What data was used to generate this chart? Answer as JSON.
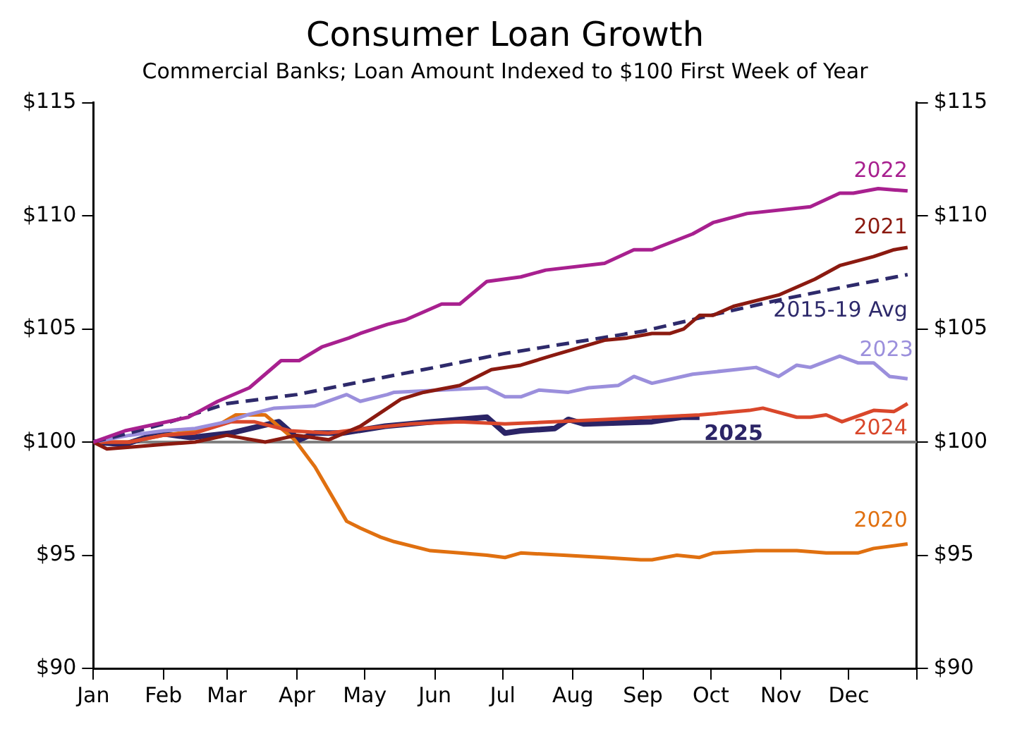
{
  "chart_data": {
    "type": "line",
    "title": "Consumer Loan Growth",
    "subtitle": "Commercial Banks; Loan Amount Indexed to $100 First Week of Year",
    "xlim": [
      "--01-01",
      "--12-31"
    ],
    "xticks": [
      {
        "value": "--01-01",
        "label": "Jan"
      },
      {
        "value": "--02-01",
        "label": "Feb"
      },
      {
        "value": "--03-01",
        "label": "Mar"
      },
      {
        "value": "--04-01",
        "label": "Apr"
      },
      {
        "value": "--05-01",
        "label": "May"
      },
      {
        "value": "--06-01",
        "label": "Jun"
      },
      {
        "value": "--07-01",
        "label": "Jul"
      },
      {
        "value": "--08-01",
        "label": "Aug"
      },
      {
        "value": "--09-01",
        "label": "Sep"
      },
      {
        "value": "--10-01",
        "label": "Oct"
      },
      {
        "value": "--11-01",
        "label": "Nov"
      },
      {
        "value": "--12-01",
        "label": "Dec"
      },
      {
        "value": "--12-31",
        "label": null
      }
    ],
    "ylim": [
      90,
      115
    ],
    "yticks": [
      {
        "value": 90,
        "label": "$90"
      },
      {
        "value": 95,
        "label": "$95"
      },
      {
        "value": 100,
        "label": "$100"
      },
      {
        "value": 105,
        "label": "$105"
      },
      {
        "value": 110,
        "label": "$110"
      },
      {
        "value": 115,
        "label": "$115"
      }
    ],
    "y2lim": [
      90,
      115
    ],
    "y2ticks": [
      {
        "value": 90,
        "label": "$90"
      },
      {
        "value": 95,
        "label": "$95"
      },
      {
        "value": 100,
        "label": "$100"
      },
      {
        "value": 105,
        "label": "$105"
      },
      {
        "value": 110,
        "label": "$110"
      },
      {
        "value": 115,
        "label": "$115"
      }
    ],
    "grid": false,
    "legend": false,
    "marker": "none",
    "ref_lines": [
      {
        "axis": "y",
        "value": 100,
        "color": "#808080"
      }
    ],
    "series": [
      {
        "name": "2022",
        "color": "#a8208f",
        "x": [
          "--01-01",
          "--01-15",
          "--02-12",
          "--02-25",
          "--03-11",
          "--03-25",
          "--04-02",
          "--04-12",
          "--04-24",
          "--04-29",
          "--05-11",
          "--05-19",
          "--06-04",
          "--06-12",
          "--06-24",
          "--07-09",
          "--07-20",
          "--08-15",
          "--08-28",
          "--09-05",
          "--09-23",
          "--10-02",
          "--10-17",
          "--11-14",
          "--11-27",
          "--12-03",
          "--12-14",
          "--12-27"
        ],
        "values": [
          100,
          100.5,
          101.1,
          101.8,
          102.4,
          103.6,
          103.6,
          104.2,
          104.6,
          104.8,
          105.2,
          105.4,
          106.1,
          106.1,
          107.1,
          107.3,
          107.6,
          107.9,
          108.5,
          108.5,
          109.2,
          109.7,
          110.1,
          110.4,
          111,
          111,
          111.2,
          111.1
        ]
      },
      {
        "name": "2021",
        "color": "#8b1a10",
        "x": [
          "--01-01",
          "--01-07",
          "--01-20",
          "--02-01",
          "--02-15",
          "--03-01",
          "--03-18",
          "--04-01",
          "--04-15",
          "--04-29",
          "--05-17",
          "--05-27",
          "--06-12",
          "--06-26",
          "--07-09",
          "--07-22",
          "--08-15",
          "--08-25",
          "--09-05",
          "--09-13",
          "--09-19",
          "--09-26",
          "--10-02",
          "--10-11",
          "--10-31",
          "--11-16",
          "--11-27",
          "--12-12",
          "--12-21",
          "--12-27"
        ],
        "values": [
          100,
          99.7,
          99.8,
          99.9,
          100,
          100.3,
          100,
          100.3,
          100.1,
          100.7,
          101.9,
          102.2,
          102.5,
          103.2,
          103.4,
          103.8,
          104.5,
          104.6,
          104.8,
          104.8,
          105,
          105.6,
          105.6,
          106,
          106.5,
          107.2,
          107.8,
          108.2,
          108.5,
          108.6
        ]
      },
      {
        "name": "2015-19 Avg",
        "color": "#2e2a6b",
        "line_style": "dashed",
        "x": [
          "--01-01",
          "--01-17",
          "--02-01",
          "--03-01",
          "--04-01",
          "--05-01",
          "--06-01",
          "--07-01",
          "--08-01",
          "--09-01",
          "--10-01",
          "--11-01",
          "--12-01",
          "--12-27"
        ],
        "values": [
          100,
          100.4,
          100.8,
          101.7,
          102.1,
          102.7,
          103.3,
          103.9,
          104.4,
          104.9,
          105.6,
          106.3,
          106.9,
          107.4
        ]
      },
      {
        "name": "2023",
        "color": "#9b8fdc",
        "x": [
          "--01-01",
          "--01-17",
          "--02-01",
          "--02-15",
          "--03-01",
          "--03-10",
          "--03-22",
          "--04-09",
          "--04-23",
          "--04-29",
          "--05-11",
          "--05-14",
          "--06-24",
          "--07-02",
          "--07-09",
          "--07-17",
          "--07-30",
          "--08-08",
          "--08-21",
          "--08-28",
          "--09-05",
          "--09-23",
          "--10-21",
          "--10-31",
          "--11-08",
          "--11-14",
          "--11-27",
          "--12-05",
          "--12-12",
          "--12-19",
          "--12-27"
        ],
        "values": [
          100,
          100.3,
          100.5,
          100.6,
          100.9,
          101.2,
          101.5,
          101.6,
          102.1,
          101.8,
          102.1,
          102.2,
          102.4,
          102,
          102,
          102.3,
          102.2,
          102.4,
          102.5,
          102.9,
          102.6,
          103,
          103.3,
          102.9,
          103.4,
          103.3,
          103.8,
          103.5,
          103.5,
          102.9,
          102.8
        ]
      },
      {
        "name": "2024",
        "color": "#d9472b",
        "x": [
          "--01-01",
          "--01-17",
          "--02-01",
          "--02-15",
          "--03-03",
          "--03-13",
          "--03-29",
          "--04-15",
          "--05-01",
          "--05-21",
          "--06-12",
          "--07-02",
          "--08-15",
          "--09-26",
          "--10-18",
          "--10-24",
          "--11-08",
          "--11-14",
          "--11-21",
          "--11-28",
          "--12-12",
          "--12-21",
          "--12-27"
        ],
        "values": [
          100,
          100,
          100.3,
          100.4,
          100.9,
          100.9,
          100.5,
          100.4,
          100.6,
          100.8,
          100.9,
          100.8,
          101,
          101.2,
          101.4,
          101.5,
          101.1,
          101.1,
          101.2,
          100.9,
          101.4,
          101.35,
          101.7
        ]
      },
      {
        "name": "2020",
        "color": "#e07010",
        "x": [
          "--01-01",
          "--01-17",
          "--02-01",
          "--02-15",
          "--02-26",
          "--03-05",
          "--03-18",
          "--03-31",
          "--04-09",
          "--04-23",
          "--04-29",
          "--05-08",
          "--05-14",
          "--05-30",
          "--06-12",
          "--06-24",
          "--07-02",
          "--07-09",
          "--07-28",
          "--08-15",
          "--08-31",
          "--09-05",
          "--09-16",
          "--09-26",
          "--10-02",
          "--10-21",
          "--11-08",
          "--11-21",
          "--12-05",
          "--12-12",
          "--12-27"
        ],
        "values": [
          100,
          100,
          100.3,
          100.5,
          100.8,
          101.2,
          101.2,
          100.1,
          98.9,
          96.5,
          96.2,
          95.8,
          95.6,
          95.2,
          95.1,
          95,
          94.9,
          95.1,
          95,
          94.9,
          94.8,
          94.8,
          95,
          94.9,
          95.1,
          95.2,
          95.2,
          95.1,
          95.1,
          95.3,
          95.5
        ]
      },
      {
        "name": "2025",
        "color": "#2b2466",
        "x": [
          "--01-01",
          "--01-15",
          "--01-30",
          "--02-13",
          "--03-03",
          "--03-24",
          "--04-02",
          "--04-09",
          "--04-21",
          "--05-10",
          "--05-31",
          "--06-24",
          "--07-02",
          "--07-09",
          "--07-24",
          "--07-30",
          "--08-06",
          "--09-05",
          "--09-18",
          "--09-26"
        ],
        "values": [
          100,
          99.9,
          100.4,
          100.2,
          100.4,
          100.9,
          100.1,
          100.4,
          100.4,
          100.7,
          100.9,
          101.1,
          100.4,
          100.5,
          100.6,
          101,
          100.8,
          100.9,
          101.1,
          101.1
        ]
      }
    ]
  }
}
